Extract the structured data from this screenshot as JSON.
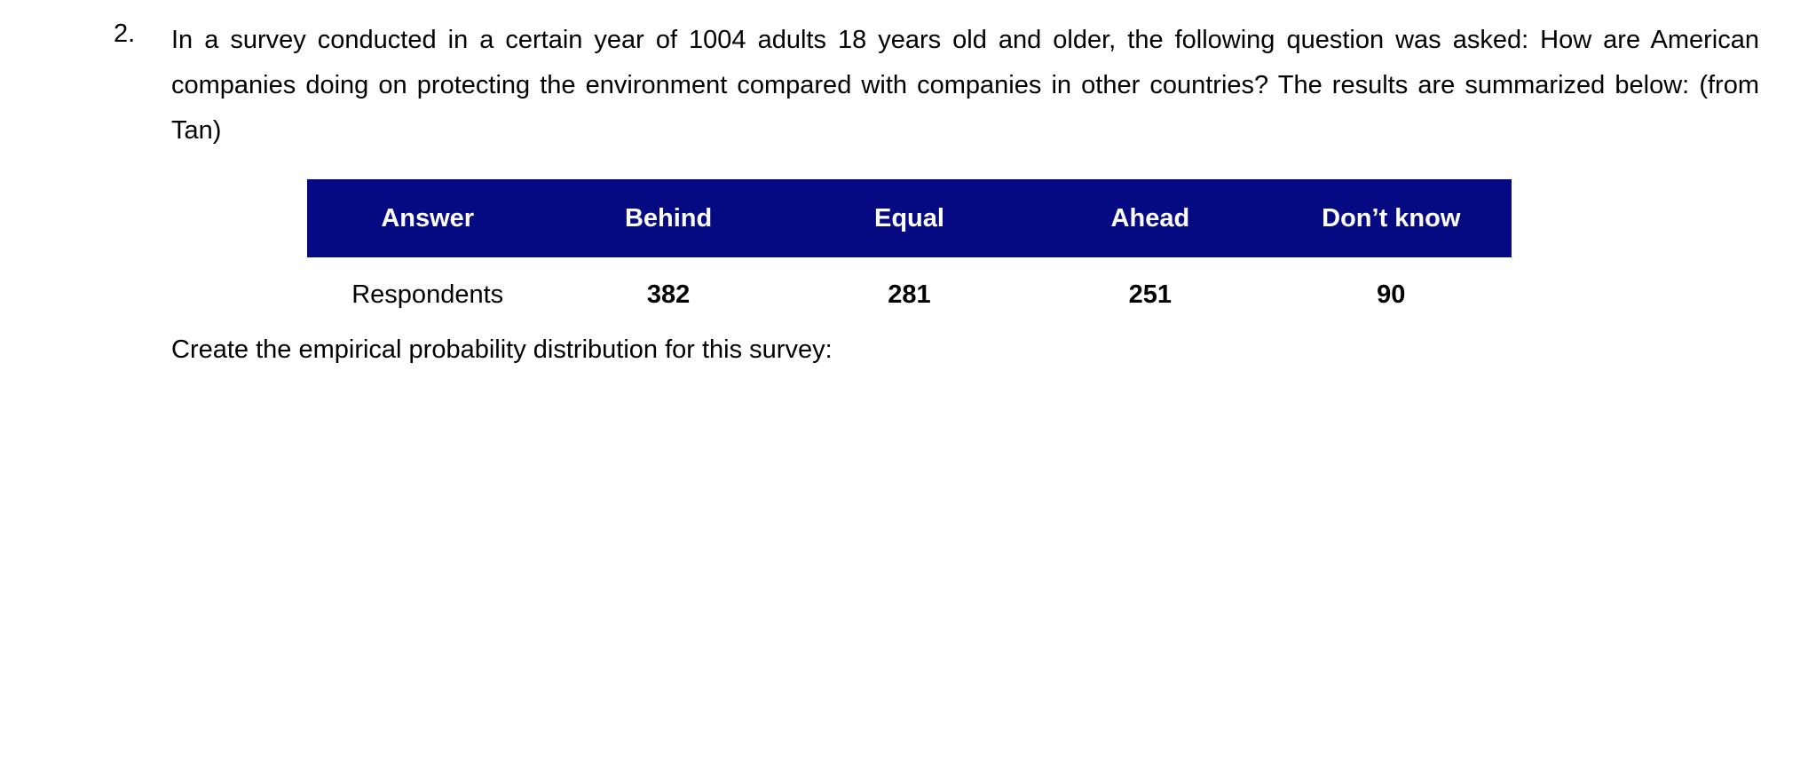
{
  "question": {
    "number": "2.",
    "text": "In a survey conducted in a certain year of 1004 adults 18 years old and older, the following question was asked: How are American companies doing on protecting the environment compared with companies in other countries? The results are summarized below: (from Tan)"
  },
  "table": {
    "header": [
      "Answer",
      "Behind",
      "Equal",
      "Ahead",
      "Don’t know"
    ],
    "rows": [
      [
        "Respondents",
        382,
        281,
        251,
        90
      ]
    ]
  },
  "instruction": "Create the empirical probability distribution for this survey:"
}
